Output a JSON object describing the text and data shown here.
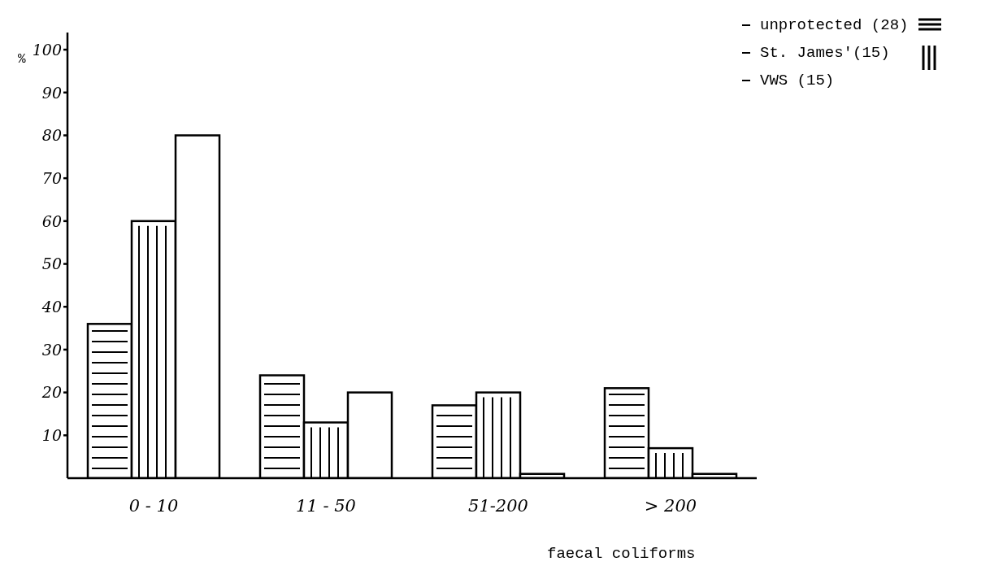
{
  "chart_data": {
    "type": "bar",
    "xlabel": "faecal coliforms",
    "ylabel": "%",
    "categories": [
      "0 - 10",
      "11 - 50",
      "51-200",
      "> 200"
    ],
    "series": [
      {
        "name": "unprotected (28)",
        "color": "#000000",
        "values": [
          36,
          24,
          17,
          21
        ]
      },
      {
        "name": "St. James'(15)",
        "color": "#000000",
        "values": [
          60,
          13,
          20,
          7
        ]
      },
      {
        "name": "VWS (15)",
        "color": "#000000",
        "values": [
          80,
          20,
          1,
          1
        ]
      }
    ],
    "ylim": [
      0,
      104
    ],
    "yticks": [
      10,
      20,
      30,
      40,
      50,
      60,
      70,
      80,
      90,
      100
    ],
    "legend": "top right"
  }
}
